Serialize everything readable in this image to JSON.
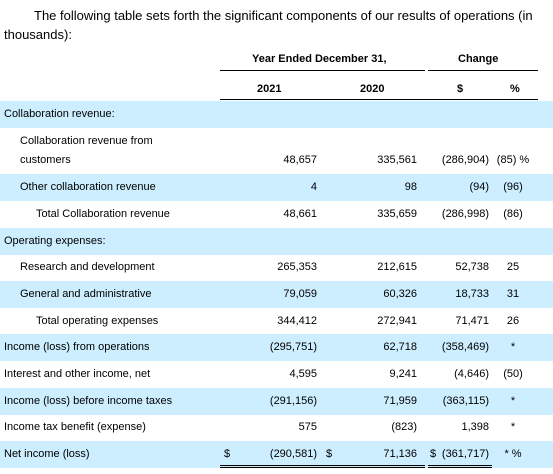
{
  "intro": {
    "line1": "The following table sets forth the significant components of our results of operations (in",
    "line2": "thousands):"
  },
  "headers": {
    "year_ended": "Year Ended December 31,",
    "change": "Change",
    "y2021": "2021",
    "y2020": "2020",
    "dollar": "$",
    "percent": "%"
  },
  "rows": [
    {
      "label": "Collaboration revenue:",
      "v2021": "",
      "v2020": "",
      "chg": "",
      "pct": ""
    },
    {
      "label": "Collaboration revenue from",
      "v2021": "",
      "v2020": "",
      "chg": "",
      "pct": ""
    },
    {
      "label": "customers",
      "v2021": "48,657",
      "v2020": "335,561",
      "chg": "(286,904)",
      "pct": "(85) %"
    },
    {
      "label": "Other collaboration revenue",
      "v2021": "4",
      "v2020": "98",
      "chg": "(94)",
      "pct": "(96)"
    },
    {
      "label": "Total Collaboration revenue",
      "v2021": "48,661",
      "v2020": "335,659",
      "chg": "(286,998)",
      "pct": "(86)"
    },
    {
      "label": "Operating expenses:",
      "v2021": "",
      "v2020": "",
      "chg": "",
      "pct": ""
    },
    {
      "label": "Research and development",
      "v2021": "265,353",
      "v2020": "212,615",
      "chg": "52,738",
      "pct": "25"
    },
    {
      "label": "General and administrative",
      "v2021": "79,059",
      "v2020": "60,326",
      "chg": "18,733",
      "pct": "31"
    },
    {
      "label": "Total operating expenses",
      "v2021": "344,412",
      "v2020": "272,941",
      "chg": "71,471",
      "pct": "26"
    },
    {
      "label": "Income (loss) from operations",
      "v2021": "(295,751)",
      "v2020": "62,718",
      "chg": "(358,469)",
      "pct": "*"
    },
    {
      "label": "Interest and other income, net",
      "v2021": "4,595",
      "v2020": "9,241",
      "chg": "(4,646)",
      "pct": "(50)"
    },
    {
      "label": "Income (loss) before income taxes",
      "v2021": "(291,156)",
      "v2020": "71,959",
      "chg": "(363,115)",
      "pct": "*"
    },
    {
      "label": "Income tax benefit (expense)",
      "v2021": "575",
      "v2020": "(823)",
      "chg": "1,398",
      "pct": "*"
    },
    {
      "label": "Net income (loss)",
      "v2021": "(290,581)",
      "v2020": "71,136",
      "chg": "(361,717)",
      "pct": "* %",
      "cur2021": "$",
      "cur2020": "$",
      "curchg": "$"
    }
  ]
}
